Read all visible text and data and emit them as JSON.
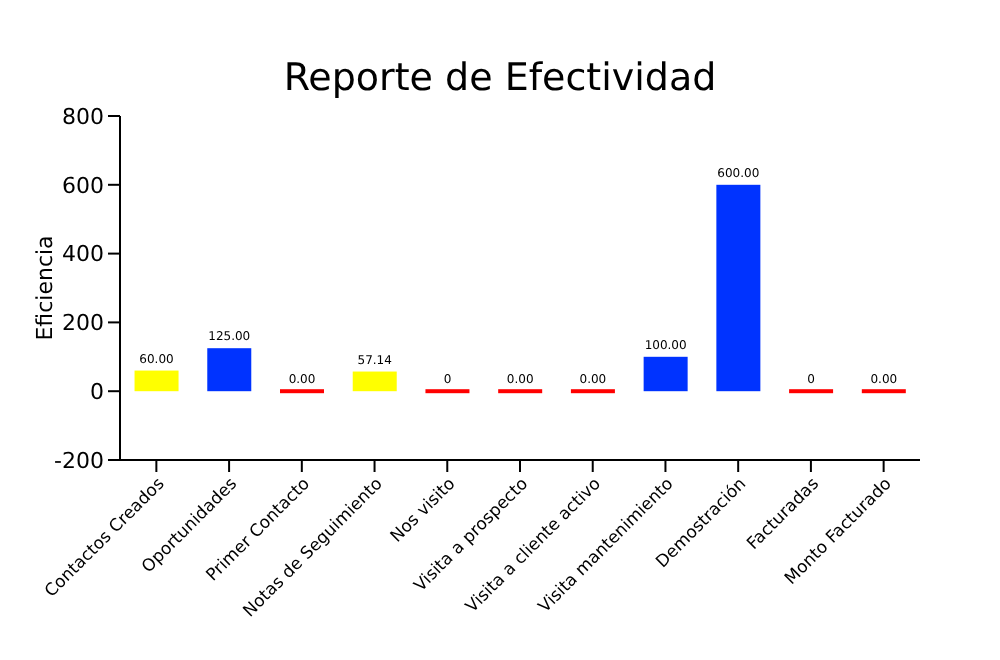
{
  "chart_data": {
    "type": "bar",
    "title": "Reporte de Efectividad",
    "ylabel": "Eficiencia",
    "categories": [
      "Contactos Creados",
      "Oportunidades",
      "Primer Contacto",
      "Notas de Seguimiento",
      "Nos visito",
      "Visita a prospecto",
      "Visita a cliente activo",
      "Visita mantenimiento",
      "Demostración",
      "Facturadas",
      "Monto Facturado"
    ],
    "values": [
      60,
      125,
      0,
      57.14,
      0,
      0,
      0,
      100,
      600,
      0,
      0
    ],
    "colors": [
      "#ffff00",
      "#0033ff",
      "#ff0000",
      "#ffff00",
      "#ff0000",
      "#ff0000",
      "#ff0000",
      "#0033ff",
      "#0033ff",
      "#ff0000",
      "#ff0000"
    ],
    "value_labels": [
      "60.00",
      "125.00",
      "0.00",
      "57.14",
      "0",
      "0.00",
      "0.00",
      "100.00",
      "600.00",
      "0",
      "0.00"
    ],
    "ylim": [
      -200,
      800
    ],
    "yticks": [
      -200,
      0,
      200,
      400,
      600,
      800
    ],
    "grid": false,
    "legend": false
  }
}
